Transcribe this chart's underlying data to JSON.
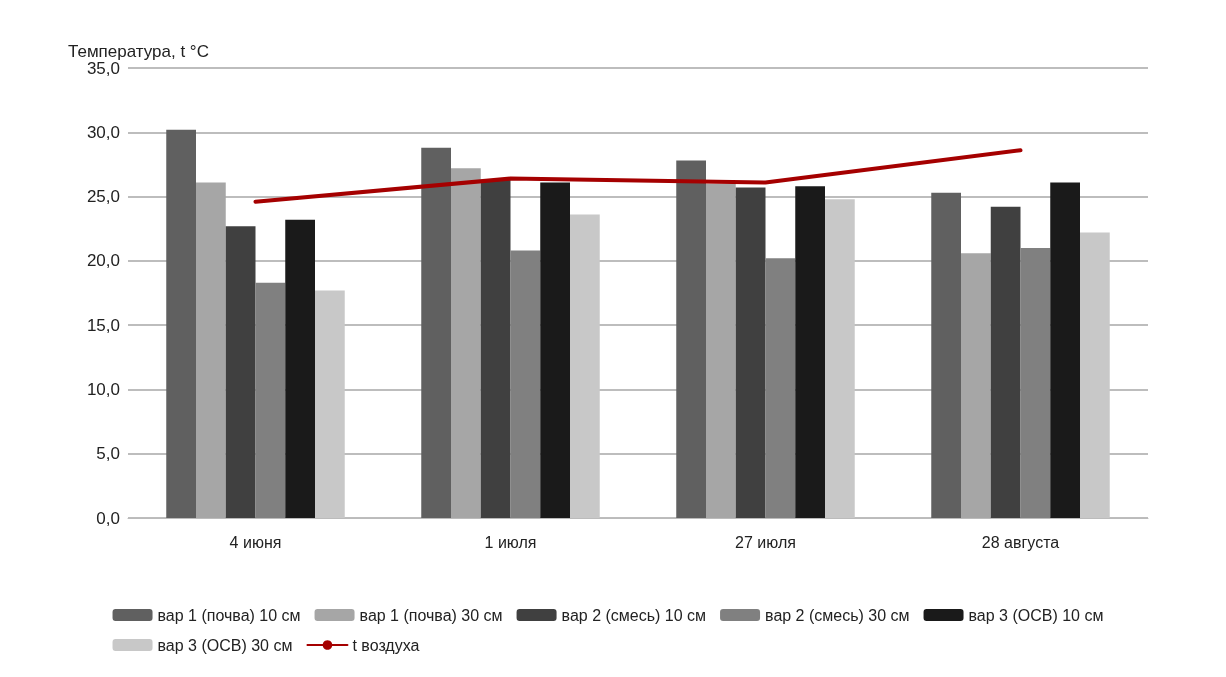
{
  "chart_data": {
    "type": "bar",
    "ylabel": "Температура, t °C",
    "categories": [
      "4 июня",
      "1 июля",
      "27 июля",
      "28 августа"
    ],
    "series": [
      {
        "name": "вар 1 (почва) 10 см",
        "color": "#606060",
        "values": [
          30.2,
          28.8,
          27.8,
          25.3
        ]
      },
      {
        "name": "вар 1 (почва) 30 см",
        "color": "#a6a6a6",
        "values": [
          26.1,
          27.2,
          26.0,
          20.6
        ]
      },
      {
        "name": "вар 2 (смесь) 10 см",
        "color": "#404040",
        "values": [
          22.7,
          26.3,
          25.7,
          24.2
        ]
      },
      {
        "name": "вар 2 (смесь) 30 см",
        "color": "#808080",
        "values": [
          18.3,
          20.8,
          20.2,
          21.0
        ]
      },
      {
        "name": "вар 3 (ОСВ) 10 см",
        "color": "#1a1a1a",
        "values": [
          23.2,
          26.1,
          25.8,
          26.1
        ]
      },
      {
        "name": "вар 3 (ОСВ) 30 см",
        "color": "#c8c8c8",
        "values": [
          17.7,
          23.6,
          24.8,
          22.2
        ]
      },
      {
        "name": "t воздуха",
        "type": "line",
        "color": "#a50000",
        "marker": "none",
        "values": [
          24.6,
          26.4,
          26.1,
          28.6
        ]
      }
    ],
    "ylim": [
      0,
      35
    ],
    "yticks": [
      {
        "value": 0,
        "label": "0,0"
      },
      {
        "value": 5,
        "label": "5,0"
      },
      {
        "value": 10,
        "label": "10,0"
      },
      {
        "value": 15,
        "label": "15,0"
      },
      {
        "value": 20,
        "label": "20,0"
      },
      {
        "value": 25,
        "label": "25,0"
      },
      {
        "value": 30,
        "label": "30,0"
      },
      {
        "value": 35,
        "label": "35,0"
      }
    ],
    "grid": "y",
    "legend": "bottom"
  }
}
